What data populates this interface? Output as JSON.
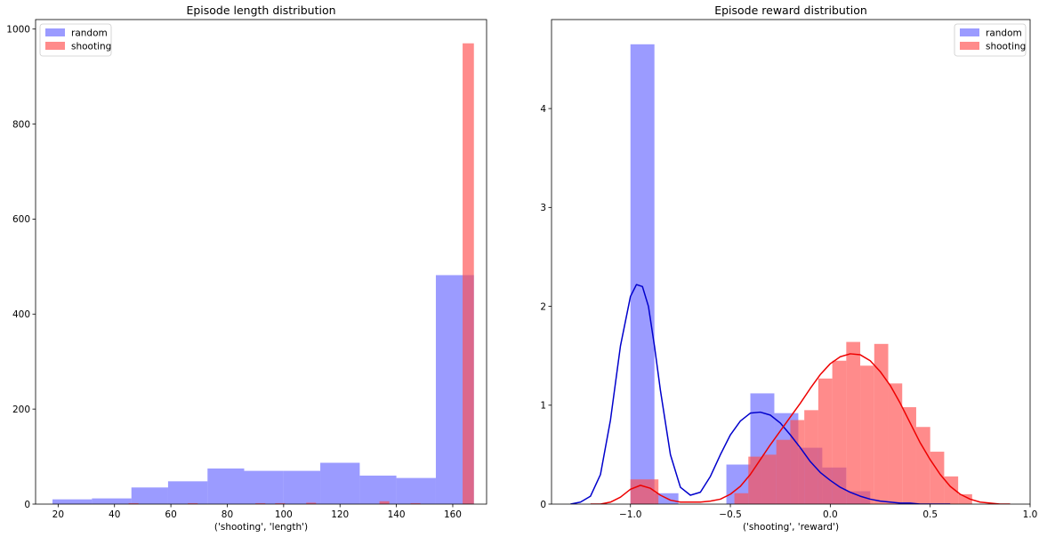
{
  "chart_data": [
    {
      "type": "bar",
      "title": "Episode length distribution",
      "xlabel": "('shooting', 'length')",
      "ylabel": "",
      "xlim": [
        12,
        172
      ],
      "ylim": [
        0,
        1020
      ],
      "xticks": [
        20,
        40,
        60,
        80,
        100,
        120,
        140,
        160
      ],
      "yticks": [
        0,
        200,
        400,
        600,
        800,
        1000
      ],
      "grid": false,
      "legend": {
        "placement": "top-left",
        "entries": [
          "random",
          "shooting"
        ]
      },
      "series": [
        {
          "name": "random",
          "color": "#6666ff",
          "bins": [
            {
              "x0": 18,
              "x1": 32,
              "y": 10
            },
            {
              "x0": 32,
              "x1": 46,
              "y": 12
            },
            {
              "x0": 46,
              "x1": 59,
              "y": 35
            },
            {
              "x0": 59,
              "x1": 73,
              "y": 48
            },
            {
              "x0": 73,
              "x1": 86,
              "y": 75
            },
            {
              "x0": 86,
              "x1": 100,
              "y": 70
            },
            {
              "x0": 100,
              "x1": 113,
              "y": 70
            },
            {
              "x0": 113,
              "x1": 127,
              "y": 87
            },
            {
              "x0": 127,
              "x1": 140,
              "y": 60
            },
            {
              "x0": 140,
              "x1": 154,
              "y": 55
            },
            {
              "x0": 154,
              "x1": 167.5,
              "y": 482
            }
          ]
        },
        {
          "name": "shooting",
          "color": "#ff4d4d",
          "bins": [
            {
              "x0": 45,
              "x1": 48.5,
              "y": 2
            },
            {
              "x0": 66,
              "x1": 69.5,
              "y": 2
            },
            {
              "x0": 90,
              "x1": 93.5,
              "y": 2
            },
            {
              "x0": 97,
              "x1": 100.5,
              "y": 2
            },
            {
              "x0": 108,
              "x1": 111.5,
              "y": 3
            },
            {
              "x0": 134,
              "x1": 137.5,
              "y": 6
            },
            {
              "x0": 145,
              "x1": 148.5,
              "y": 2
            },
            {
              "x0": 163.5,
              "x1": 167.5,
              "y": 970
            }
          ]
        }
      ]
    },
    {
      "type": "bar",
      "title": "Episode reward distribution",
      "xlabel": "('shooting', 'reward')",
      "ylabel": "",
      "xlim": [
        -1.395,
        1.0
      ],
      "ylim": [
        0,
        4.9
      ],
      "xticks": [
        -1.0,
        -0.5,
        0.0,
        0.5,
        1.0
      ],
      "xticklabels": [
        "−1.0",
        "−0.5",
        "0.0",
        "0.5",
        "1.0"
      ],
      "yticks": [
        0,
        1,
        2,
        3,
        4
      ],
      "grid": false,
      "legend": {
        "placement": "top-right",
        "entries": [
          "random",
          "shooting"
        ]
      },
      "series": [
        {
          "name": "random",
          "color": "#6666ff",
          "line_color": "#0000cc",
          "bins": [
            {
              "x0": -1.0,
              "x1": -0.88,
              "y": 4.65
            },
            {
              "x0": -0.88,
              "x1": -0.76,
              "y": 0.11
            },
            {
              "x0": -0.52,
              "x1": -0.4,
              "y": 0.4
            },
            {
              "x0": -0.4,
              "x1": -0.28,
              "y": 1.12
            },
            {
              "x0": -0.28,
              "x1": -0.16,
              "y": 0.92
            },
            {
              "x0": -0.16,
              "x1": -0.04,
              "y": 0.57
            },
            {
              "x0": -0.04,
              "x1": 0.08,
              "y": 0.37
            },
            {
              "x0": 0.08,
              "x1": 0.2,
              "y": 0.13
            }
          ],
          "kde": {
            "x": [
              -1.3,
              -1.25,
              -1.2,
              -1.15,
              -1.1,
              -1.05,
              -1.0,
              -0.97,
              -0.94,
              -0.91,
              -0.88,
              -0.85,
              -0.8,
              -0.75,
              -0.7,
              -0.65,
              -0.6,
              -0.55,
              -0.5,
              -0.45,
              -0.4,
              -0.35,
              -0.3,
              -0.25,
              -0.2,
              -0.15,
              -0.1,
              -0.05,
              0.0,
              0.05,
              0.1,
              0.15,
              0.2,
              0.25,
              0.3,
              0.35,
              0.4,
              0.45,
              0.5,
              0.55,
              0.6
            ],
            "y": [
              0.0,
              0.02,
              0.08,
              0.3,
              0.85,
              1.6,
              2.1,
              2.22,
              2.2,
              2.0,
              1.6,
              1.15,
              0.5,
              0.17,
              0.09,
              0.12,
              0.28,
              0.5,
              0.7,
              0.84,
              0.92,
              0.93,
              0.9,
              0.82,
              0.7,
              0.57,
              0.43,
              0.32,
              0.24,
              0.17,
              0.12,
              0.08,
              0.05,
              0.03,
              0.02,
              0.01,
              0.01,
              0.0,
              0.0,
              0.0,
              0.0
            ]
          }
        },
        {
          "name": "shooting",
          "color": "#ff4d4d",
          "line_color": "#ee0000",
          "bins": [
            {
              "x0": -1.0,
              "x1": -0.86,
              "y": 0.25
            },
            {
              "x0": -0.86,
              "x1": -0.72,
              "y": 0.0
            },
            {
              "x0": -0.48,
              "x1": -0.41,
              "y": 0.11
            },
            {
              "x0": -0.41,
              "x1": -0.34,
              "y": 0.48
            },
            {
              "x0": -0.34,
              "x1": -0.27,
              "y": 0.5
            },
            {
              "x0": -0.27,
              "x1": -0.2,
              "y": 0.65
            },
            {
              "x0": -0.2,
              "x1": -0.13,
              "y": 0.85
            },
            {
              "x0": -0.13,
              "x1": -0.06,
              "y": 0.95
            },
            {
              "x0": -0.06,
              "x1": 0.01,
              "y": 1.27
            },
            {
              "x0": 0.01,
              "x1": 0.08,
              "y": 1.45
            },
            {
              "x0": 0.08,
              "x1": 0.15,
              "y": 1.64
            },
            {
              "x0": 0.15,
              "x1": 0.22,
              "y": 1.4
            },
            {
              "x0": 0.22,
              "x1": 0.29,
              "y": 1.62
            },
            {
              "x0": 0.29,
              "x1": 0.36,
              "y": 1.22
            },
            {
              "x0": 0.36,
              "x1": 0.43,
              "y": 0.98
            },
            {
              "x0": 0.43,
              "x1": 0.5,
              "y": 0.78
            },
            {
              "x0": 0.5,
              "x1": 0.57,
              "y": 0.53
            },
            {
              "x0": 0.57,
              "x1": 0.64,
              "y": 0.28
            },
            {
              "x0": 0.64,
              "x1": 0.71,
              "y": 0.1
            }
          ],
          "kde": {
            "x": [
              -1.2,
              -1.15,
              -1.1,
              -1.05,
              -1.0,
              -0.95,
              -0.9,
              -0.85,
              -0.8,
              -0.75,
              -0.7,
              -0.65,
              -0.6,
              -0.55,
              -0.5,
              -0.45,
              -0.4,
              -0.35,
              -0.3,
              -0.25,
              -0.2,
              -0.15,
              -0.1,
              -0.05,
              0.0,
              0.05,
              0.1,
              0.15,
              0.2,
              0.25,
              0.3,
              0.35,
              0.4,
              0.45,
              0.5,
              0.55,
              0.6,
              0.65,
              0.7,
              0.75,
              0.8,
              0.85,
              0.9
            ],
            "y": [
              0.0,
              0.0,
              0.02,
              0.07,
              0.15,
              0.19,
              0.16,
              0.09,
              0.04,
              0.02,
              0.02,
              0.02,
              0.03,
              0.05,
              0.1,
              0.18,
              0.3,
              0.45,
              0.6,
              0.74,
              0.88,
              1.02,
              1.17,
              1.31,
              1.42,
              1.49,
              1.52,
              1.51,
              1.45,
              1.34,
              1.2,
              1.02,
              0.82,
              0.62,
              0.45,
              0.3,
              0.18,
              0.1,
              0.05,
              0.02,
              0.01,
              0.0,
              0.0
            ]
          }
        }
      ]
    }
  ]
}
